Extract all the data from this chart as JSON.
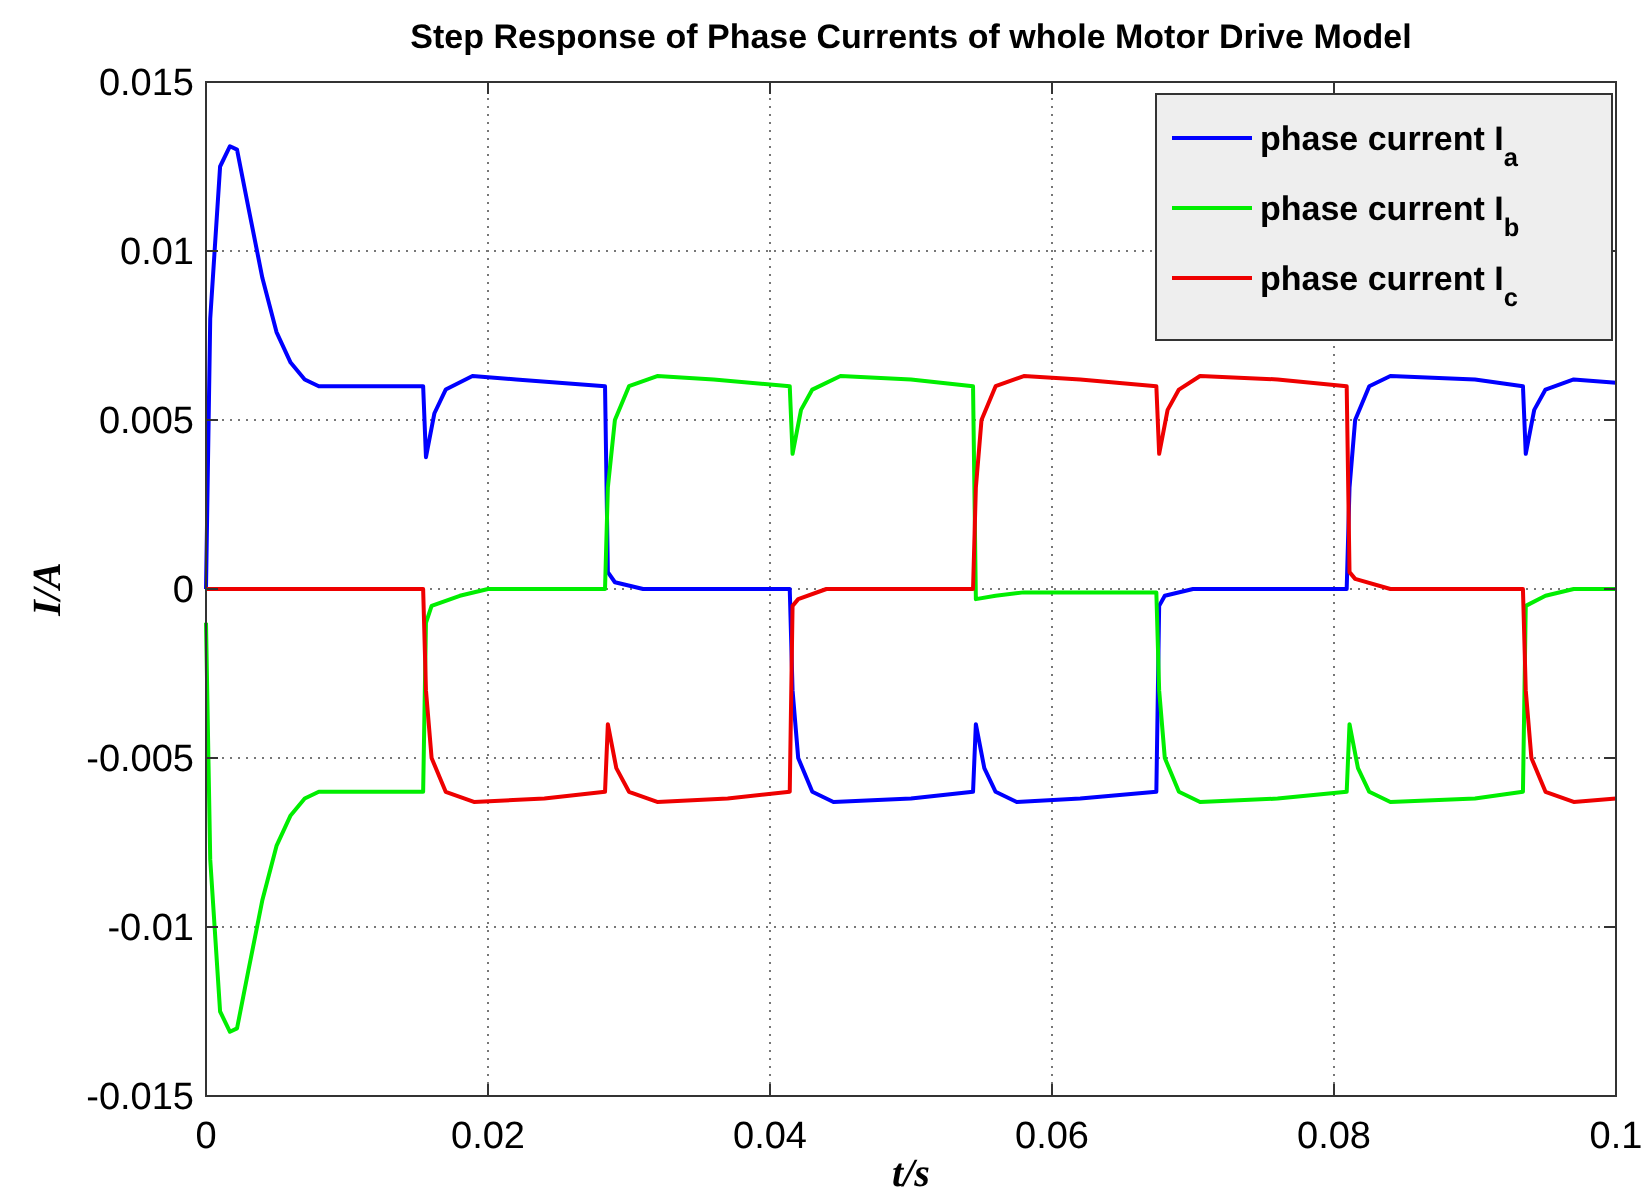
{
  "chart_data": {
    "type": "line",
    "title": "Step Response of Phase Currents of whole Motor Drive Model",
    "xlabel": "t/s",
    "ylabel": "I/A",
    "xlim": [
      0,
      0.1
    ],
    "xticks": [
      0,
      0.02,
      0.04,
      0.06,
      0.08,
      0.1
    ],
    "ylim": [
      -0.015,
      0.015
    ],
    "yticks": [
      -0.015,
      -0.01,
      -0.005,
      0,
      0.005,
      0.01,
      0.015
    ],
    "grid": true,
    "legend": "top right",
    "line_style": "solid",
    "marker": "none",
    "series": [
      {
        "name": "phase current I$_{a}$",
        "color": "#0000ff",
        "x": [
          0,
          0.0003,
          0.001,
          0.0017,
          0.0022,
          0.003,
          0.004,
          0.005,
          0.006,
          0.007,
          0.008,
          0.0154,
          0.0156,
          0.0162,
          0.017,
          0.0189,
          0.022,
          0.0283,
          0.0285,
          0.029,
          0.031,
          0.0414,
          0.0416,
          0.042,
          0.043,
          0.0445,
          0.05,
          0.0544,
          0.0546,
          0.0552,
          0.056,
          0.0575,
          0.062,
          0.0674,
          0.0676,
          0.068,
          0.07,
          0.0809,
          0.0811,
          0.0815,
          0.0825,
          0.084,
          0.09,
          0.0934,
          0.0936,
          0.0942,
          0.095,
          0.097,
          0.1
        ],
        "values": [
          0,
          0.008,
          0.0125,
          0.0131,
          0.013,
          0.0113,
          0.0092,
          0.0076,
          0.0067,
          0.0062,
          0.006,
          0.006,
          0.0039,
          0.0052,
          0.0059,
          0.0063,
          0.0062,
          0.006,
          0.0005,
          0.0002,
          0,
          0,
          -0.003,
          -0.005,
          -0.006,
          -0.0063,
          -0.0062,
          -0.006,
          -0.004,
          -0.0053,
          -0.006,
          -0.0063,
          -0.0062,
          -0.006,
          -0.0005,
          -0.0002,
          0,
          0,
          0.003,
          0.005,
          0.006,
          0.0063,
          0.0062,
          0.006,
          0.004,
          0.0053,
          0.0059,
          0.0062,
          0.0061
        ]
      },
      {
        "name": "phase current I$_{b}$",
        "color": "#00ee00",
        "x": [
          0,
          0.0003,
          0.001,
          0.0017,
          0.0022,
          0.003,
          0.004,
          0.005,
          0.006,
          0.007,
          0.008,
          0.0154,
          0.0156,
          0.016,
          0.018,
          0.02,
          0.0283,
          0.0285,
          0.029,
          0.03,
          0.032,
          0.036,
          0.0414,
          0.0416,
          0.0422,
          0.043,
          0.045,
          0.05,
          0.0544,
          0.0546,
          0.056,
          0.058,
          0.0674,
          0.0676,
          0.068,
          0.069,
          0.0705,
          0.076,
          0.0809,
          0.0811,
          0.0817,
          0.0825,
          0.084,
          0.09,
          0.0934,
          0.0936,
          0.095,
          0.097,
          0.1
        ],
        "values": [
          -0.001,
          -0.008,
          -0.0125,
          -0.0131,
          -0.013,
          -0.0113,
          -0.0092,
          -0.0076,
          -0.0067,
          -0.0062,
          -0.006,
          -0.006,
          -0.001,
          -0.0005,
          -0.0002,
          0,
          0,
          0.003,
          0.005,
          0.006,
          0.0063,
          0.0062,
          0.006,
          0.004,
          0.0053,
          0.0059,
          0.0063,
          0.0062,
          0.006,
          -0.0003,
          -0.0002,
          -0.0001,
          -0.0001,
          -0.003,
          -0.005,
          -0.006,
          -0.0063,
          -0.0062,
          -0.006,
          -0.004,
          -0.0053,
          -0.006,
          -0.0063,
          -0.0062,
          -0.006,
          -0.0005,
          -0.0002,
          0,
          0
        ]
      },
      {
        "name": "phase current I$_{c}$",
        "color": "#ee0000",
        "x": [
          0,
          0.0154,
          0.0156,
          0.016,
          0.017,
          0.019,
          0.024,
          0.0283,
          0.0285,
          0.0291,
          0.03,
          0.032,
          0.037,
          0.0414,
          0.0416,
          0.042,
          0.044,
          0.0544,
          0.0546,
          0.055,
          0.056,
          0.058,
          0.062,
          0.0674,
          0.0676,
          0.0682,
          0.069,
          0.0705,
          0.076,
          0.0809,
          0.0811,
          0.0815,
          0.084,
          0.0934,
          0.0936,
          0.094,
          0.095,
          0.097,
          0.1
        ],
        "values": [
          0,
          0,
          -0.003,
          -0.005,
          -0.006,
          -0.0063,
          -0.0062,
          -0.006,
          -0.004,
          -0.0053,
          -0.006,
          -0.0063,
          -0.0062,
          -0.006,
          -0.0005,
          -0.0003,
          0,
          0,
          0.003,
          0.005,
          0.006,
          0.0063,
          0.0062,
          0.006,
          0.004,
          0.0053,
          0.0059,
          0.0063,
          0.0062,
          0.006,
          0.0005,
          0.0003,
          0,
          0,
          -0.003,
          -0.005,
          -0.006,
          -0.0063,
          -0.0062
        ]
      }
    ]
  }
}
